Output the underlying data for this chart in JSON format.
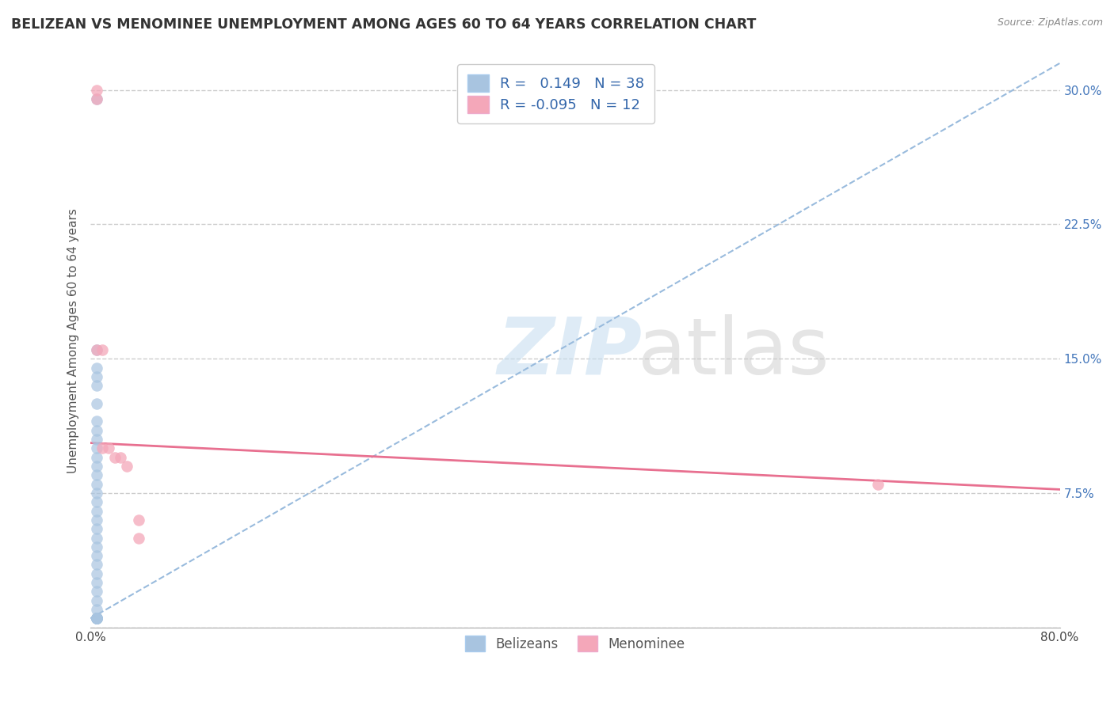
{
  "title": "BELIZEAN VS MENOMINEE UNEMPLOYMENT AMONG AGES 60 TO 64 YEARS CORRELATION CHART",
  "source": "Source: ZipAtlas.com",
  "ylabel": "Unemployment Among Ages 60 to 64 years",
  "xlim": [
    0.0,
    0.8
  ],
  "ylim": [
    0.0,
    0.32
  ],
  "xticks": [
    0.0,
    0.2,
    0.4,
    0.6,
    0.8
  ],
  "xticklabels": [
    "0.0%",
    "",
    "",
    "",
    "80.0%"
  ],
  "yticks": [
    0.0,
    0.075,
    0.15,
    0.225,
    0.3
  ],
  "yticklabels": [
    "",
    "7.5%",
    "15.0%",
    "22.5%",
    "30.0%"
  ],
  "belizean_R": 0.149,
  "belizean_N": 38,
  "menominee_R": -0.095,
  "menominee_N": 12,
  "belizean_color": "#a8c4e0",
  "menominee_color": "#f4a7b9",
  "menominee_line_color": "#e87090",
  "trendline_blue_color": "#99bbdd",
  "background_color": "#ffffff",
  "belizean_x": [
    0.005,
    0.005,
    0.005,
    0.005,
    0.005,
    0.005,
    0.005,
    0.005,
    0.005,
    0.005,
    0.005,
    0.005,
    0.005,
    0.005,
    0.005,
    0.005,
    0.005,
    0.005,
    0.005,
    0.005,
    0.005,
    0.005,
    0.005,
    0.005,
    0.005,
    0.005,
    0.005,
    0.005,
    0.005,
    0.005,
    0.005,
    0.005,
    0.005,
    0.005,
    0.005,
    0.005,
    0.005,
    0.005
  ],
  "belizean_y": [
    0.295,
    0.155,
    0.145,
    0.14,
    0.135,
    0.125,
    0.115,
    0.11,
    0.105,
    0.1,
    0.095,
    0.09,
    0.085,
    0.08,
    0.075,
    0.07,
    0.065,
    0.06,
    0.055,
    0.05,
    0.045,
    0.04,
    0.035,
    0.03,
    0.025,
    0.02,
    0.015,
    0.01,
    0.005,
    0.005,
    0.005,
    0.005,
    0.005,
    0.005,
    0.005,
    0.005,
    0.005,
    0.005
  ],
  "menominee_x": [
    0.005,
    0.005,
    0.005,
    0.01,
    0.01,
    0.015,
    0.02,
    0.025,
    0.03,
    0.04,
    0.65,
    0.04
  ],
  "menominee_y": [
    0.3,
    0.295,
    0.155,
    0.155,
    0.1,
    0.1,
    0.095,
    0.095,
    0.09,
    0.06,
    0.08,
    0.05
  ],
  "grid_color": "#cccccc",
  "dot_size": 110,
  "menominee_line_x0": 0.0,
  "menominee_line_y0": 0.103,
  "menominee_line_x1": 0.8,
  "menominee_line_y1": 0.077,
  "blue_line_x0": 0.0,
  "blue_line_y0": 0.005,
  "blue_line_x1": 0.8,
  "blue_line_y1": 0.315
}
